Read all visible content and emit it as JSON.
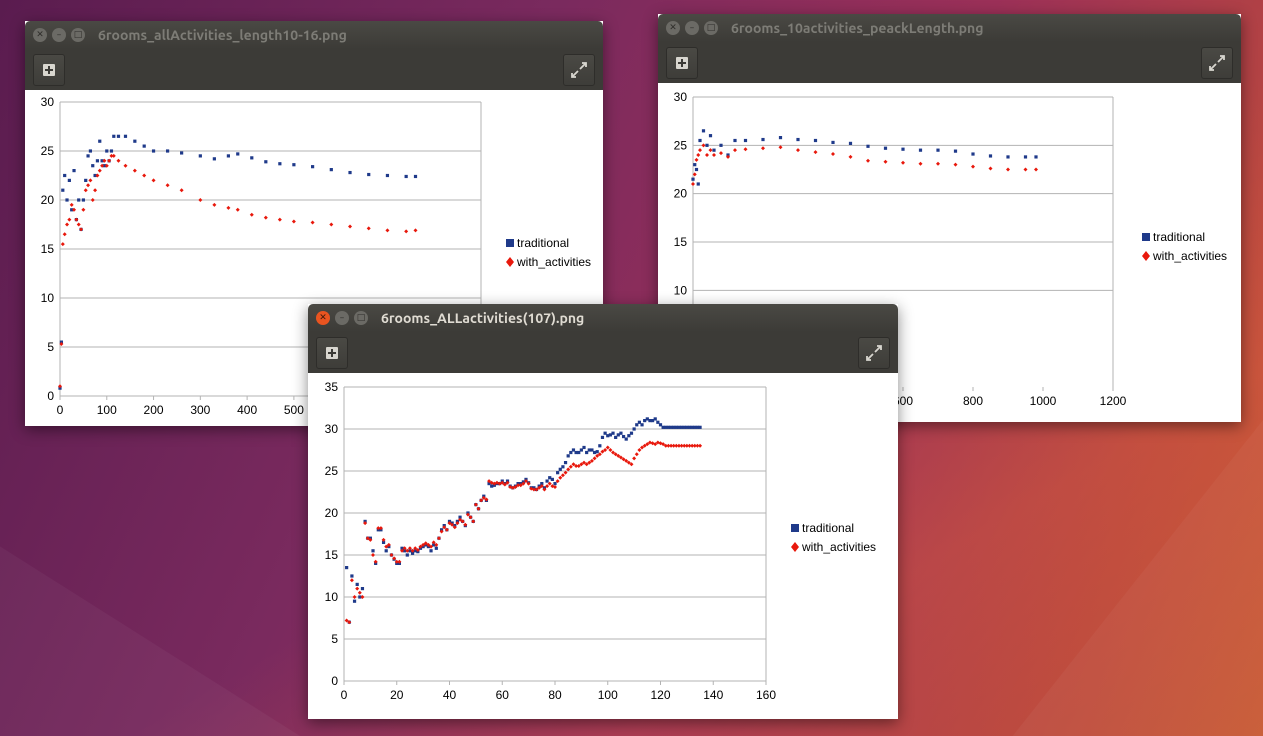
{
  "windows": [
    {
      "id": "w1",
      "title": "6rooms_allActivities_length10-16.png",
      "chart_data": {
        "type": "scatter",
        "title": "",
        "xlabel": "",
        "ylabel": "",
        "xlim": [
          0,
          900
        ],
        "ylim": [
          0,
          30
        ],
        "xticks": [
          0,
          100,
          200,
          300,
          400,
          500
        ],
        "yticks": [
          0,
          5,
          10,
          15,
          20,
          25,
          30
        ],
        "grid": "horizontal",
        "legend": "right",
        "series": [
          {
            "name": "traditional",
            "color": "#1f3a8a",
            "x": [
              0,
              3,
              6,
              10,
              15,
              20,
              25,
              30,
              35,
              40,
              45,
              50,
              55,
              60,
              65,
              70,
              75,
              80,
              85,
              90,
              95,
              100,
              105,
              110,
              115,
              125,
              140,
              160,
              180,
              200,
              230,
              260,
              300,
              330,
              360,
              380,
              410,
              440,
              470,
              500,
              540,
              580,
              620,
              660,
              700,
              740,
              760
            ],
            "y": [
              0.8,
              5.5,
              21,
              22.5,
              20,
              22,
              19,
              23,
              18,
              20,
              17,
              20,
              22,
              24.5,
              25,
              23.5,
              22.5,
              24,
              26,
              24,
              23.5,
              25,
              24,
              25,
              26.5,
              26.5,
              26.5,
              26,
              25.5,
              25,
              25,
              24.8,
              24.5,
              24.2,
              24.5,
              24.7,
              24.3,
              23.9,
              23.7,
              23.6,
              23.4,
              23.1,
              22.8,
              22.6,
              22.5,
              22.4,
              22.4
            ]
          },
          {
            "name": "with_activities",
            "color": "#e8180c",
            "x": [
              0,
              3,
              6,
              10,
              15,
              20,
              25,
              30,
              35,
              40,
              45,
              50,
              55,
              60,
              65,
              70,
              75,
              80,
              85,
              90,
              95,
              100,
              105,
              110,
              115,
              125,
              140,
              160,
              180,
              200,
              230,
              260,
              300,
              330,
              360,
              380,
              410,
              440,
              470,
              500,
              540,
              580,
              620,
              660,
              700,
              740,
              760
            ],
            "y": [
              1,
              5.3,
              15.5,
              16.5,
              17.5,
              18,
              19.5,
              19,
              18,
              17.5,
              17,
              19,
              21,
              21.5,
              22,
              20,
              21,
              22.5,
              23,
              23.5,
              24,
              23.5,
              24,
              24.5,
              24.5,
              24,
              23.5,
              23,
              22.5,
              22,
              21.5,
              21,
              20,
              19.5,
              19.2,
              19,
              18.5,
              18.2,
              18,
              17.8,
              17.7,
              17.5,
              17.3,
              17.1,
              16.9,
              16.8,
              16.9
            ]
          }
        ]
      }
    },
    {
      "id": "w2",
      "title": "6rooms_10activities_peackLength.png",
      "chart_data": {
        "type": "scatter",
        "title": "",
        "xlabel": "",
        "ylabel": "",
        "xlim": [
          0,
          1200
        ],
        "ylim": [
          0,
          30
        ],
        "xticks": [
          600,
          800,
          1000,
          1200
        ],
        "yticks": [
          10,
          15,
          20,
          25,
          30
        ],
        "grid": "horizontal",
        "legend": "right",
        "series": [
          {
            "name": "traditional",
            "color": "#1f3a8a",
            "x": [
              0,
              5,
              10,
              15,
              20,
              30,
              40,
              50,
              60,
              80,
              100,
              120,
              150,
              200,
              250,
              300,
              350,
              400,
              450,
              500,
              550,
              600,
              650,
              700,
              750,
              800,
              850,
              900,
              950,
              980
            ],
            "y": [
              21.5,
              23,
              22.5,
              21,
              25.5,
              26.5,
              25,
              26,
              24.5,
              25,
              24,
              25.5,
              25.5,
              25.6,
              25.8,
              25.6,
              25.5,
              25.3,
              25.2,
              24.9,
              24.7,
              24.6,
              24.5,
              24.5,
              24.4,
              24.1,
              23.9,
              23.8,
              23.8,
              23.8
            ]
          },
          {
            "name": "with_activities",
            "color": "#e8180c",
            "x": [
              0,
              5,
              10,
              15,
              20,
              30,
              40,
              50,
              60,
              80,
              100,
              120,
              150,
              200,
              250,
              300,
              350,
              400,
              450,
              500,
              550,
              600,
              650,
              700,
              750,
              800,
              850,
              900,
              950,
              980
            ],
            "y": [
              21,
              22,
              23.5,
              24,
              24.5,
              25,
              24,
              24.5,
              24,
              24.2,
              23.8,
              24.5,
              24.6,
              24.7,
              24.8,
              24.5,
              24.3,
              24.1,
              23.8,
              23.4,
              23.3,
              23.2,
              23.1,
              23.1,
              23,
              22.8,
              22.6,
              22.5,
              22.5,
              22.5
            ]
          }
        ]
      }
    },
    {
      "id": "w3",
      "title": "6rooms_ALLactivities(107).png",
      "chart_data": {
        "type": "scatter",
        "title": "",
        "xlabel": "",
        "ylabel": "",
        "xlim": [
          0,
          160
        ],
        "ylim": [
          0,
          35
        ],
        "xticks": [
          0,
          20,
          40,
          60,
          80,
          100,
          120,
          140,
          160
        ],
        "yticks": [
          0,
          5,
          10,
          15,
          20,
          25,
          30,
          35
        ],
        "grid": "horizontal",
        "legend": "right",
        "series": [
          {
            "name": "traditional",
            "color": "#1f3a8a",
            "x": [
              1,
              2,
              3,
              4,
              5,
              6,
              7,
              8,
              9,
              10,
              11,
              12,
              13,
              14,
              15,
              16,
              17,
              18,
              19,
              20,
              21,
              22,
              23,
              24,
              25,
              26,
              27,
              28,
              29,
              30,
              31,
              32,
              33,
              34,
              35,
              36,
              37,
              38,
              39,
              40,
              41,
              42,
              43,
              44,
              45,
              46,
              47,
              48,
              49,
              50,
              51,
              52,
              53,
              54,
              55,
              56,
              57,
              58,
              59,
              60,
              61,
              62,
              63,
              64,
              65,
              66,
              67,
              68,
              69,
              70,
              71,
              72,
              73,
              74,
              75,
              76,
              77,
              78,
              79,
              80,
              81,
              82,
              83,
              84,
              85,
              86,
              87,
              88,
              89,
              90,
              91,
              92,
              93,
              94,
              95,
              96,
              97,
              98,
              99,
              100,
              101,
              102,
              103,
              104,
              105,
              106,
              107,
              108,
              109,
              110,
              111,
              112,
              113,
              114,
              115,
              116,
              117,
              118,
              119,
              120,
              121,
              122,
              123,
              124,
              125,
              126,
              127,
              128,
              129,
              130,
              131,
              132,
              133,
              134,
              135
            ],
            "y": [
              13.5,
              7,
              12.5,
              9.5,
              11.5,
              10,
              11,
              19,
              17,
              17,
              15.5,
              14,
              18,
              18,
              16.5,
              15.5,
              16,
              15,
              14.5,
              14,
              14,
              15.8,
              15.5,
              15,
              15.5,
              15.2,
              15.5,
              15.4,
              15.8,
              16,
              16.2,
              16,
              15.5,
              16.2,
              15.8,
              17,
              18,
              18.5,
              18,
              19,
              18.8,
              18.5,
              19,
              19.5,
              19,
              18.5,
              20,
              19.5,
              19,
              21,
              20.5,
              21.5,
              22,
              21.5,
              23.5,
              23.2,
              23.3,
              23.5,
              23.5,
              23.8,
              23.5,
              23.8,
              23.2,
              23,
              23.2,
              23.5,
              23.5,
              23.7,
              24,
              23.6,
              23,
              23,
              22.8,
              23.2,
              23.5,
              23,
              23.8,
              24.2,
              24,
              23.5,
              24.8,
              25.2,
              25.5,
              26,
              26.8,
              27.2,
              27.5,
              27.2,
              27.2,
              27.5,
              27.8,
              27.2,
              27.5,
              27.5,
              27.2,
              27.3,
              28,
              29,
              29.5,
              29.2,
              29.3,
              29.5,
              29,
              29.3,
              29.5,
              29.1,
              28.8,
              29.2,
              29.5,
              30,
              30.5,
              30.8,
              30.5,
              31,
              31.2,
              31,
              31,
              31.2,
              30.8,
              30.5,
              30.2,
              30.2,
              30.2,
              30.2,
              30.2,
              30.2,
              30.2,
              30.2,
              30.2,
              30.2,
              30.2,
              30.2,
              30.2,
              30.2,
              30.2
            ]
          },
          {
            "name": "with_activities",
            "color": "#e8180c",
            "x": [
              1,
              2,
              3,
              4,
              5,
              6,
              7,
              8,
              9,
              10,
              11,
              12,
              13,
              14,
              15,
              16,
              17,
              18,
              19,
              20,
              21,
              22,
              23,
              24,
              25,
              26,
              27,
              28,
              29,
              30,
              31,
              32,
              33,
              34,
              35,
              36,
              37,
              38,
              39,
              40,
              41,
              42,
              43,
              44,
              45,
              46,
              47,
              48,
              49,
              50,
              51,
              52,
              53,
              54,
              55,
              56,
              57,
              58,
              59,
              60,
              61,
              62,
              63,
              64,
              65,
              66,
              67,
              68,
              69,
              70,
              71,
              72,
              73,
              74,
              75,
              76,
              77,
              78,
              79,
              80,
              81,
              82,
              83,
              84,
              85,
              86,
              87,
              88,
              89,
              90,
              91,
              92,
              93,
              94,
              95,
              96,
              97,
              98,
              99,
              100,
              101,
              102,
              103,
              104,
              105,
              106,
              107,
              108,
              109,
              110,
              111,
              112,
              113,
              114,
              115,
              116,
              117,
              118,
              119,
              120,
              121,
              122,
              123,
              124,
              125,
              126,
              127,
              128,
              129,
              130,
              131,
              132,
              133,
              134,
              135
            ],
            "y": [
              7.2,
              7,
              12,
              10,
              11,
              10.5,
              10,
              18.8,
              17,
              16.8,
              15,
              14.2,
              18.2,
              18.2,
              16.8,
              16,
              16.2,
              15,
              14.6,
              14.2,
              14.2,
              15.5,
              15.8,
              15.5,
              15.8,
              15.5,
              15.8,
              15.6,
              16,
              16.2,
              16.4,
              16.2,
              16,
              16.5,
              16.2,
              17,
              17.8,
              18.3,
              18,
              18.8,
              18.6,
              18.3,
              18.8,
              19.2,
              19,
              18.6,
              19.8,
              19.5,
              19,
              21,
              20.5,
              21.5,
              21.8,
              21.6,
              23.8,
              23.6,
              23.5,
              23.6,
              23.5,
              23.6,
              23.4,
              23.6,
              23.1,
              23,
              23.1,
              23.3,
              23.3,
              23.5,
              23.8,
              23.5,
              22.9,
              22.8,
              22.8,
              23,
              23.2,
              22.8,
              23.2,
              23.5,
              23.2,
              23.1,
              23.8,
              24.2,
              24.5,
              24.8,
              25.2,
              25.5,
              25.8,
              25.6,
              25.6,
              25.8,
              26,
              25.8,
              26,
              26.2,
              26.5,
              26.8,
              27,
              27.3,
              27.5,
              27.8,
              27.5,
              27.2,
              27,
              26.8,
              26.6,
              26.4,
              26.2,
              26,
              25.8,
              26.5,
              27,
              27.5,
              27.8,
              28,
              28.2,
              28.4,
              28.3,
              28.2,
              28.4,
              28.3,
              28.2,
              28,
              28,
              28,
              28,
              28,
              28,
              28,
              28,
              28,
              28,
              28,
              28,
              28,
              28
            ]
          }
        ]
      }
    }
  ]
}
